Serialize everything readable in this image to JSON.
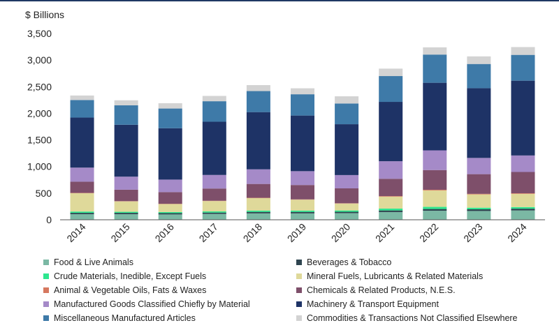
{
  "chart_data": {
    "type": "bar",
    "stacked": true,
    "title": "",
    "ylabel": "$ Billions",
    "ylim": [
      0,
      3500
    ],
    "yticks": [
      "0",
      "500",
      "1,000",
      "1,500",
      "2,000",
      "2,500",
      "3,000",
      "3,500"
    ],
    "ytick_values": [
      0,
      500,
      1000,
      1500,
      2000,
      2500,
      3000,
      3500
    ],
    "categories": [
      "2014",
      "2015",
      "2016",
      "2017",
      "2018",
      "2019",
      "2020",
      "2021",
      "2022",
      "2023",
      "2024"
    ],
    "legend_position": "bottom",
    "grid": false,
    "series": [
      {
        "name": "Food & Live Animals",
        "color": "#7bb8a4",
        "values": [
          105,
          105,
          100,
          110,
          120,
          120,
          125,
          145,
          170,
          165,
          175
        ]
      },
      {
        "name": "Beverages & Tobacco",
        "color": "#2f4550",
        "values": [
          25,
          25,
          25,
          25,
          28,
          28,
          25,
          30,
          32,
          32,
          33
        ]
      },
      {
        "name": "Crude Materials, Inedible, Except Fuels",
        "color": "#2ee68f",
        "values": [
          25,
          20,
          20,
          22,
          25,
          25,
          25,
          35,
          40,
          30,
          30
        ]
      },
      {
        "name": "Mineral Fuels, Lubricants & Related Materials",
        "color": "#dfd99a",
        "values": [
          345,
          195,
          150,
          195,
          235,
          205,
          130,
          225,
          310,
          250,
          250
        ]
      },
      {
        "name": "Animal & Vegetable Oils, Fats & Waxes",
        "color": "#d6785f",
        "values": [
          5,
          5,
          5,
          5,
          5,
          5,
          5,
          10,
          12,
          10,
          10
        ]
      },
      {
        "name": "Chemicals & Related Products, N.E.S.",
        "color": "#7e4f6a",
        "values": [
          210,
          215,
          220,
          230,
          260,
          270,
          280,
          325,
          370,
          370,
          400
        ]
      },
      {
        "name": "Manufactured Goods Classified Chiefly by Material",
        "color": "#a58ac8",
        "values": [
          265,
          245,
          235,
          255,
          275,
          260,
          250,
          330,
          370,
          305,
          310
        ]
      },
      {
        "name": "Machinery & Transport Equipment",
        "color": "#1e3366",
        "values": [
          940,
          975,
          965,
          1000,
          1075,
          1045,
          955,
          1115,
          1270,
          1310,
          1405
        ]
      },
      {
        "name": "Miscellaneous Manufactured Articles",
        "color": "#3e7aa8",
        "values": [
          330,
          365,
          370,
          385,
          395,
          400,
          390,
          485,
          530,
          455,
          485
        ]
      },
      {
        "name": "Commodities & Transactions Not Classified Elsewhere",
        "color": "#d3d3d3",
        "values": [
          85,
          95,
          100,
          100,
          112,
          112,
          135,
          140,
          136,
          143,
          147
        ]
      }
    ]
  }
}
